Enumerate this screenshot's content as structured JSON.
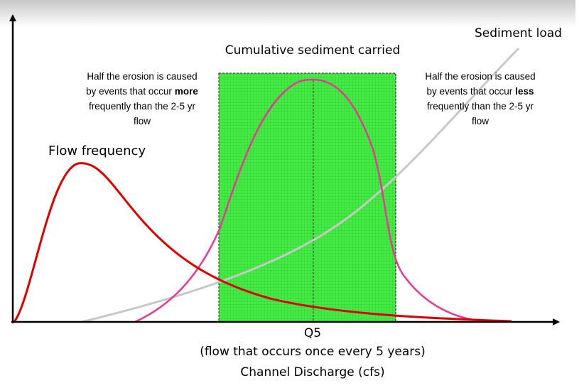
{
  "labels": {
    "sediment_load": "Sediment load",
    "cumulative": "Cumulative sediment carried",
    "flow_frequency": "Flow frequency",
    "q5": "Q5",
    "q5_note": "(flow that occurs once every 5 years)",
    "x_axis": "Channel Discharge (cfs)"
  },
  "left_note": {
    "line1": "Half the erosion is caused",
    "line2": "by events that occur",
    "line2_bold": "more",
    "line3": "frequently than the 2-5 yr",
    "line4": "flow"
  },
  "right_note": {
    "line1": "Half the erosion is caused",
    "line2": "by events that occur",
    "line2_bold": "less",
    "line3": "frequently than the 2-5 yr",
    "line4": "flow"
  }
}
